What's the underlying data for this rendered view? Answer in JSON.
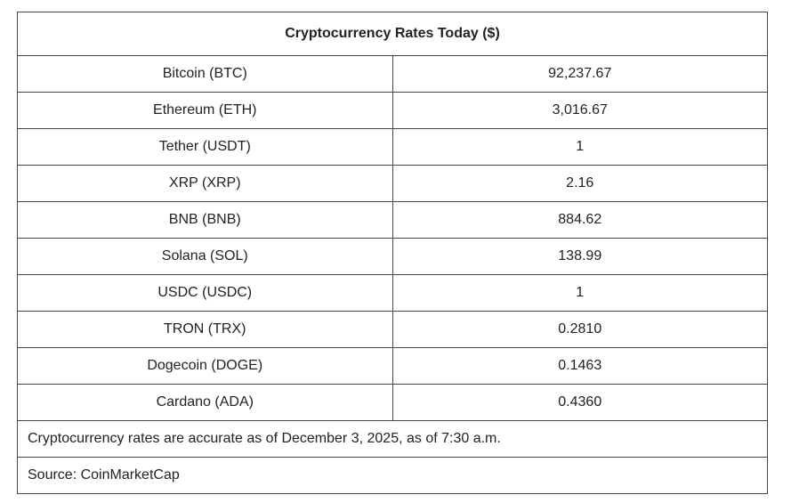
{
  "table": {
    "title": "Cryptocurrency Rates Today ($)",
    "rows": [
      {
        "name": "Bitcoin (BTC)",
        "price": "92,237.67"
      },
      {
        "name": "Ethereum (ETH)",
        "price": "3,016.67"
      },
      {
        "name": "Tether (USDT)",
        "price": "1"
      },
      {
        "name": "XRP (XRP)",
        "price": "2.16"
      },
      {
        "name": "BNB (BNB)",
        "price": "884.62"
      },
      {
        "name": "Solana (SOL)",
        "price": "138.99"
      },
      {
        "name": "USDC (USDC)",
        "price": "1"
      },
      {
        "name": "TRON (TRX)",
        "price": "0.2810"
      },
      {
        "name": "Dogecoin (DOGE)",
        "price": "0.1463"
      },
      {
        "name": "Cardano (ADA)",
        "price": "0.4360"
      }
    ],
    "note": "Cryptocurrency rates are accurate as of December 3, 2025, as of 7:30 a.m.",
    "source": "Source: CoinMarketCap"
  }
}
